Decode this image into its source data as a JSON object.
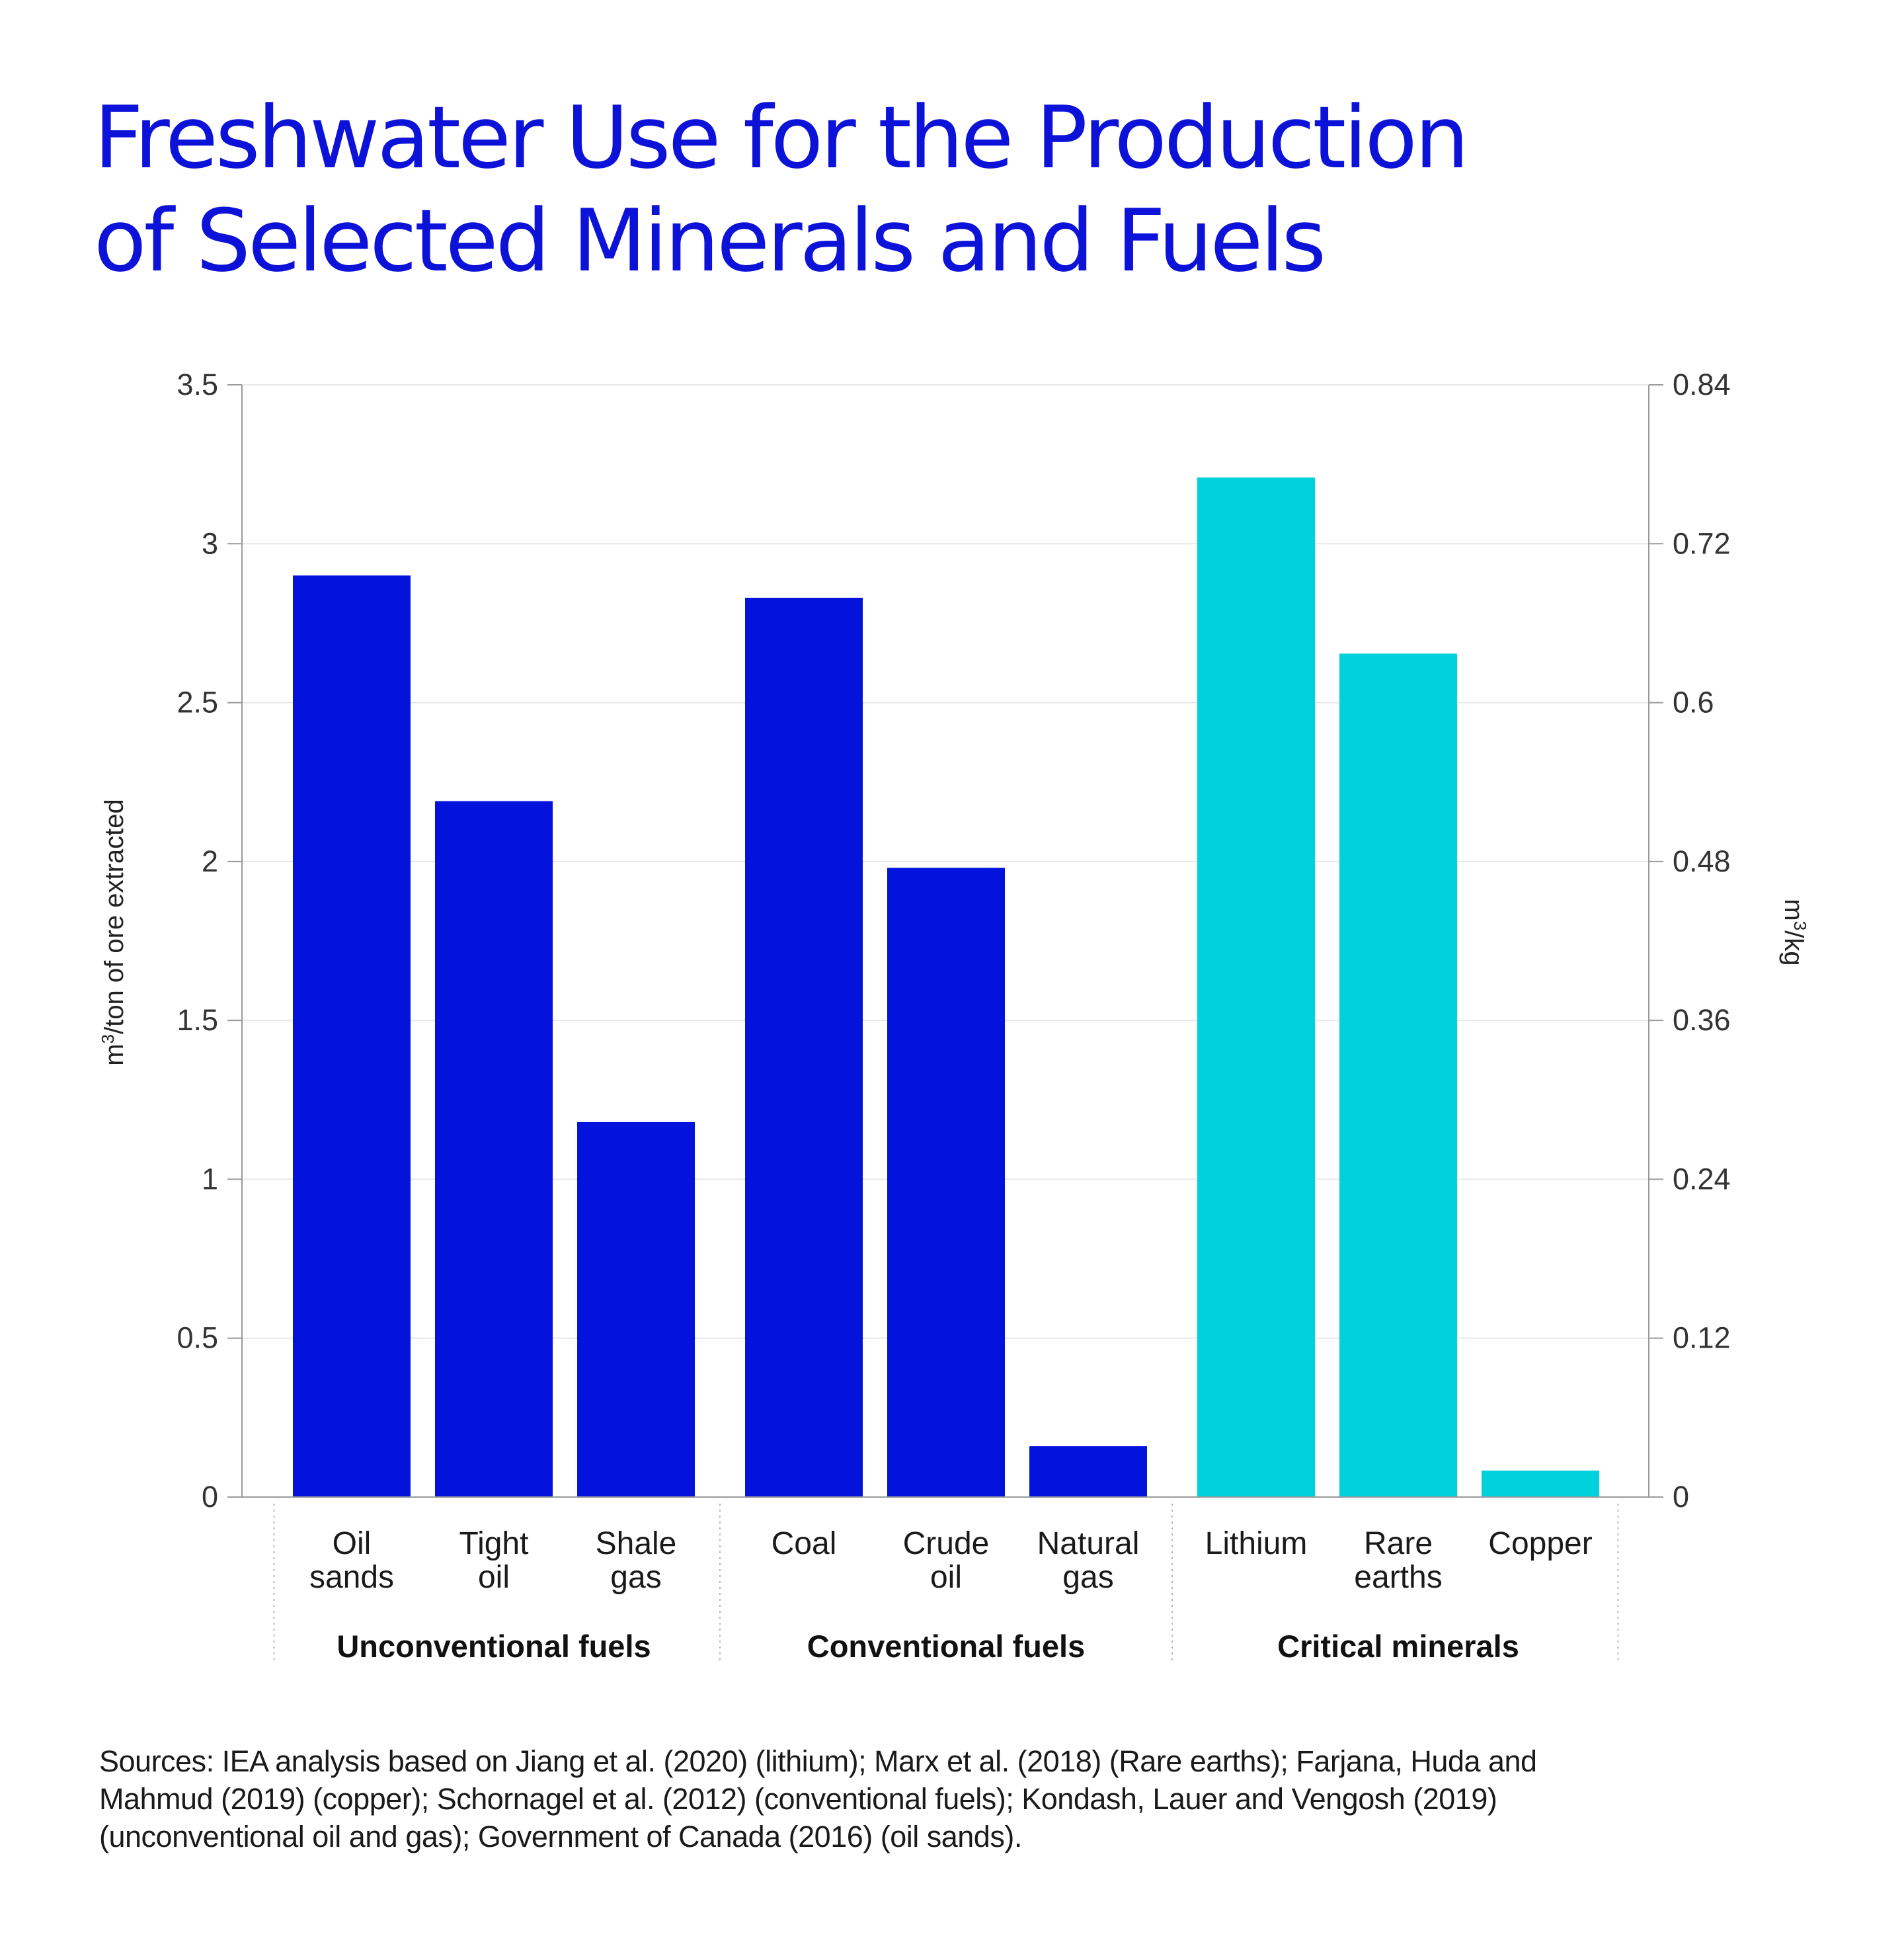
{
  "title_lines": [
    "Freshwater Use for the Production",
    "of Selected Minerals and Fuels"
  ],
  "colors": {
    "title": "#0d12d8",
    "fuels": "#0413dc",
    "minerals": "#00d1dc",
    "grid": "#e8e8e8",
    "axis": "#9a9a9a"
  },
  "chart_data": {
    "type": "bar",
    "title": "Freshwater Use for the Production of Selected Minerals and Fuels",
    "categories": [
      {
        "label": [
          "Oil",
          "sands"
        ],
        "group": 0,
        "axis": "left"
      },
      {
        "label": [
          "Tight",
          "oil"
        ],
        "group": 0,
        "axis": "left"
      },
      {
        "label": [
          "Shale",
          "gas"
        ],
        "group": 0,
        "axis": "left"
      },
      {
        "label": [
          "Coal"
        ],
        "group": 1,
        "axis": "left"
      },
      {
        "label": [
          "Crude",
          "oil"
        ],
        "group": 1,
        "axis": "left"
      },
      {
        "label": [
          "Natural",
          "gas"
        ],
        "group": 1,
        "axis": "left"
      },
      {
        "label": [
          "Lithium"
        ],
        "group": 2,
        "axis": "right"
      },
      {
        "label": [
          "Rare",
          "earths"
        ],
        "group": 2,
        "axis": "right"
      },
      {
        "label": [
          "Copper"
        ],
        "group": 2,
        "axis": "right"
      }
    ],
    "values": [
      2.9,
      2.19,
      1.18,
      2.83,
      1.98,
      0.16,
      0.77,
      0.637,
      0.02
    ],
    "groups": [
      "Unconventional fuels",
      "Conventional fuels",
      "Critical minerals"
    ],
    "left_axis": {
      "label_base": "m",
      "label_sup": "3",
      "label_rest": "/ton of ore extracted",
      "ticks": [
        "0",
        "0.5",
        "1",
        "1.5",
        "2",
        "2.5",
        "3",
        "3.5"
      ],
      "ylim": [
        0,
        3.5
      ]
    },
    "right_axis": {
      "label_base": "m",
      "label_sup": "3",
      "label_rest": "/kg",
      "ticks": [
        "0",
        "0.12",
        "0.24",
        "0.36",
        "0.48",
        "0.6",
        "0.72",
        "0.84"
      ],
      "ylim": [
        0,
        0.84
      ]
    },
    "grid": true
  },
  "sources": [
    "Sources: IEA analysis based on Jiang et al. (2020) (lithium); Marx et al. (2018) (Rare earths); Farjana, Huda and",
    "Mahmud (2019) (copper); Schornagel et al. (2012) (conventional fuels); Kondash, Lauer and Vengosh (2019)",
    "(unconventional oil and gas); Government of Canada (2016) (oil sands)."
  ]
}
